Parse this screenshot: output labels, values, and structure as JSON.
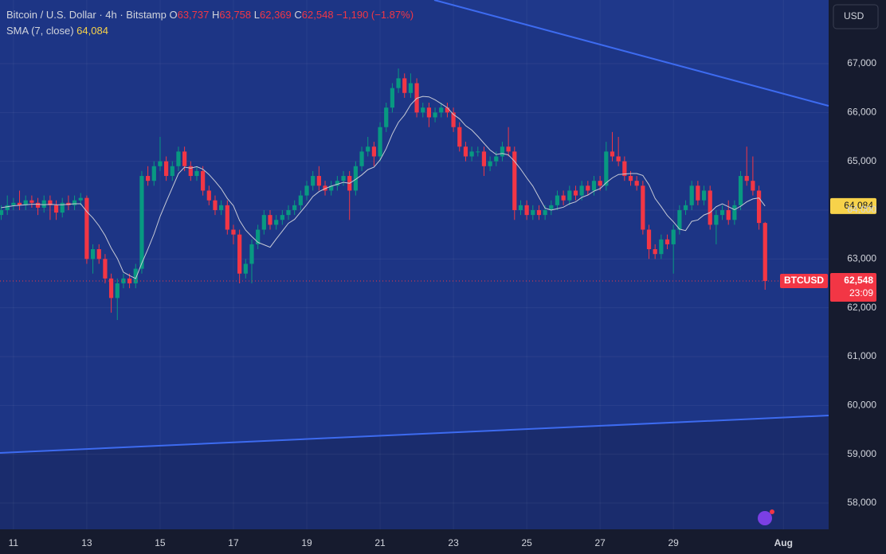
{
  "header": {
    "symbol": "Bitcoin / U.S. Dollar · 4h · Bitstamp",
    "ohlc": [
      [
        "O",
        "63,737"
      ],
      [
        "H",
        "63,758"
      ],
      [
        "L",
        "62,369"
      ],
      [
        "C",
        "62,548"
      ]
    ],
    "change": "−1,190 (−1.87%)",
    "indicator": "SMA (7, close)",
    "indicator_value": "64,084"
  },
  "chart_data": {
    "type": "candlestick",
    "up_color": "#089981",
    "down_color": "#f23645",
    "sma_color": "#c7cad6",
    "grid": true,
    "currency": "USD",
    "sma_tag": "64,084",
    "symbol_tag": "BTCUSD",
    "last_price_tag": "62,548",
    "countdown": "23:09",
    "xlim": [
      -0.2,
      135.4
    ],
    "xticks": [
      {
        "value": 2,
        "label": "11"
      },
      {
        "value": 14,
        "label": "13"
      },
      {
        "value": 26,
        "label": "15"
      },
      {
        "value": 38,
        "label": "17"
      },
      {
        "value": 50,
        "label": "19"
      },
      {
        "value": 62,
        "label": "21"
      },
      {
        "value": 74,
        "label": "23"
      },
      {
        "value": 86,
        "label": "25"
      },
      {
        "value": 98,
        "label": "27"
      },
      {
        "value": 110,
        "label": "29"
      },
      {
        "value": 128,
        "label": "Aug"
      }
    ],
    "ylim": [
      57462,
      68304
    ],
    "yticks": [
      {
        "value": 67000,
        "label": "67,000"
      },
      {
        "value": 66000,
        "label": "66,000"
      },
      {
        "value": 65000,
        "label": "65,000"
      },
      {
        "value": 64000,
        "label": "64,000"
      },
      {
        "value": 63000,
        "label": "63,000"
      },
      {
        "value": 62000,
        "label": "62,000"
      },
      {
        "value": 61000,
        "label": "61,000"
      },
      {
        "value": 60000,
        "label": "60,000"
      },
      {
        "value": 59000,
        "label": "59,000"
      },
      {
        "value": 58000,
        "label": "58,000"
      }
    ],
    "ohlc": [
      [
        63900,
        64100,
        63800,
        64000
      ],
      [
        64000,
        64300,
        63900,
        64100
      ],
      [
        64100,
        64250,
        64000,
        64150
      ],
      [
        64150,
        64400,
        64000,
        64100
      ],
      [
        64100,
        64300,
        64000,
        64200
      ],
      [
        64200,
        64300,
        64050,
        64150
      ],
      [
        64150,
        64250,
        63900,
        64050
      ],
      [
        64050,
        64300,
        63950,
        64200
      ],
      [
        64200,
        64300,
        63800,
        64100
      ],
      [
        64100,
        64200,
        63800,
        63950
      ],
      [
        63950,
        64250,
        63850,
        64150
      ],
      [
        64150,
        64300,
        64000,
        64100
      ],
      [
        64100,
        64300,
        64000,
        64200
      ],
      [
        64200,
        64350,
        64100,
        64250
      ],
      [
        64250,
        64300,
        62900,
        63000
      ],
      [
        63000,
        63300,
        62700,
        63200
      ],
      [
        63200,
        63300,
        62900,
        63000
      ],
      [
        63000,
        63100,
        62500,
        62600
      ],
      [
        62600,
        62700,
        61900,
        62200
      ],
      [
        62200,
        62600,
        61750,
        62500
      ],
      [
        62500,
        62700,
        62400,
        62600
      ],
      [
        62600,
        62700,
        62400,
        62500
      ],
      [
        62500,
        62900,
        62400,
        62800
      ],
      [
        62800,
        64800,
        62700,
        64700
      ],
      [
        64700,
        64900,
        64500,
        64600
      ],
      [
        64600,
        65000,
        64500,
        64900
      ],
      [
        64900,
        65500,
        64800,
        65000
      ],
      [
        65000,
        65100,
        64600,
        64700
      ],
      [
        64700,
        65000,
        64600,
        64900
      ],
      [
        64900,
        65300,
        64800,
        65200
      ],
      [
        65200,
        65300,
        64800,
        64900
      ],
      [
        64900,
        65000,
        64600,
        64700
      ],
      [
        64700,
        64900,
        64600,
        64800
      ],
      [
        64800,
        64900,
        64300,
        64400
      ],
      [
        64400,
        64500,
        64100,
        64200
      ],
      [
        64200,
        64300,
        63900,
        64000
      ],
      [
        64000,
        64200,
        63900,
        64100
      ],
      [
        64100,
        64200,
        63500,
        63600
      ],
      [
        63600,
        63700,
        63300,
        63500
      ],
      [
        63500,
        63600,
        62500,
        62700
      ],
      [
        62700,
        63000,
        62600,
        62900
      ],
      [
        62900,
        63400,
        62500,
        63300
      ],
      [
        63300,
        63700,
        63200,
        63600
      ],
      [
        63600,
        64000,
        63500,
        63900
      ],
      [
        63900,
        64000,
        63600,
        63700
      ],
      [
        63700,
        63900,
        63600,
        63800
      ],
      [
        63800,
        64000,
        63700,
        63900
      ],
      [
        63900,
        64100,
        63800,
        64000
      ],
      [
        64000,
        64200,
        63900,
        64100
      ],
      [
        64100,
        64400,
        64000,
        64300
      ],
      [
        64300,
        64600,
        64200,
        64500
      ],
      [
        64500,
        64800,
        64400,
        64700
      ],
      [
        64700,
        64900,
        64400,
        64500
      ],
      [
        64500,
        64600,
        64300,
        64400
      ],
      [
        64400,
        64600,
        64300,
        64500
      ],
      [
        64500,
        64700,
        64400,
        64600
      ],
      [
        64600,
        64800,
        64500,
        64700
      ],
      [
        64700,
        64800,
        63800,
        64400
      ],
      [
        64400,
        65000,
        64300,
        64900
      ],
      [
        64900,
        65300,
        64800,
        65200
      ],
      [
        65200,
        65500,
        65100,
        65300
      ],
      [
        65300,
        65400,
        64900,
        65100
      ],
      [
        65100,
        65800,
        65000,
        65700
      ],
      [
        65700,
        66200,
        65600,
        66100
      ],
      [
        66100,
        66600,
        66000,
        66500
      ],
      [
        66500,
        66900,
        66400,
        66700
      ],
      [
        66700,
        66800,
        66300,
        66400
      ],
      [
        66400,
        66800,
        66300,
        66600
      ],
      [
        66600,
        66700,
        65900,
        66000
      ],
      [
        66000,
        66200,
        65900,
        66100
      ],
      [
        66100,
        66200,
        65700,
        65900
      ],
      [
        65900,
        66100,
        65800,
        66000
      ],
      [
        66000,
        66200,
        65900,
        66100
      ],
      [
        66100,
        66200,
        65900,
        66000
      ],
      [
        66000,
        66100,
        65600,
        65700
      ],
      [
        65700,
        65800,
        65200,
        65300
      ],
      [
        65300,
        65400,
        65000,
        65100
      ],
      [
        65100,
        65300,
        65000,
        65200
      ],
      [
        65200,
        65300,
        65100,
        65200
      ],
      [
        65200,
        65300,
        64700,
        64900
      ],
      [
        64900,
        65100,
        64800,
        65000
      ],
      [
        65000,
        65200,
        64900,
        65100
      ],
      [
        65100,
        65400,
        65000,
        65300
      ],
      [
        65300,
        65700,
        65100,
        65200
      ],
      [
        65200,
        65300,
        63800,
        64000
      ],
      [
        64000,
        64200,
        63900,
        64100
      ],
      [
        64100,
        64200,
        63800,
        63900
      ],
      [
        63900,
        64100,
        63800,
        64000
      ],
      [
        64000,
        64100,
        63800,
        63900
      ],
      [
        63900,
        64100,
        63800,
        64000
      ],
      [
        64000,
        64200,
        63900,
        64100
      ],
      [
        64100,
        64400,
        64000,
        64300
      ],
      [
        64300,
        64400,
        64100,
        64200
      ],
      [
        64200,
        64500,
        64100,
        64400
      ],
      [
        64400,
        64500,
        64200,
        64300
      ],
      [
        64300,
        64600,
        64200,
        64500
      ],
      [
        64500,
        64600,
        64300,
        64400
      ],
      [
        64400,
        64700,
        64300,
        64600
      ],
      [
        64600,
        64700,
        64400,
        64500
      ],
      [
        64500,
        65400,
        64400,
        65200
      ],
      [
        65200,
        65600,
        65000,
        65100
      ],
      [
        65100,
        65500,
        64900,
        65000
      ],
      [
        65000,
        65100,
        64600,
        64700
      ],
      [
        64700,
        64800,
        64500,
        64600
      ],
      [
        64600,
        64700,
        64400,
        64500
      ],
      [
        64500,
        64600,
        63500,
        63600
      ],
      [
        63600,
        63700,
        63000,
        63200
      ],
      [
        63200,
        63300,
        63000,
        63100
      ],
      [
        63100,
        63500,
        63000,
        63400
      ],
      [
        63400,
        63500,
        63200,
        63300
      ],
      [
        63300,
        63700,
        62700,
        63600
      ],
      [
        63600,
        64100,
        63500,
        64000
      ],
      [
        64000,
        64200,
        63900,
        64100
      ],
      [
        64100,
        64600,
        64000,
        64500
      ],
      [
        64500,
        64600,
        64100,
        64200
      ],
      [
        64200,
        64500,
        64100,
        64400
      ],
      [
        64400,
        64500,
        63600,
        63700
      ],
      [
        63700,
        64000,
        63300,
        63900
      ],
      [
        63900,
        64100,
        63800,
        64000
      ],
      [
        64000,
        64200,
        63700,
        63800
      ],
      [
        63800,
        64200,
        63700,
        64100
      ],
      [
        64100,
        64800,
        64000,
        64700
      ],
      [
        64700,
        65300,
        64500,
        64600
      ],
      [
        64600,
        65100,
        64300,
        64400
      ],
      [
        64400,
        64500,
        63600,
        63737
      ],
      [
        63737,
        63758,
        62369,
        62548
      ]
    ],
    "sma": [
      64050,
      64070,
      64090,
      64100,
      64110,
      64120,
      64120,
      64110,
      64120,
      64110,
      64110,
      64120,
      64130,
      64130,
      63970,
      63840,
      63680,
      63480,
      63220,
      63010,
      62730,
      62660,
      62600,
      62910,
      63200,
      63510,
      63870,
      64170,
      64460,
      64750,
      64880,
      64860,
      64890,
      64840,
      64730,
      64590,
      64440,
      64240,
      64090,
      63790,
      63590,
      63460,
      63340,
      63290,
      63240,
      63410,
      63570,
      63730,
      63810,
      63960,
      64110,
      64280,
      64380,
      64440,
      64490,
      64530,
      64570,
      64550,
      64630,
      64720,
      64830,
      64880,
      65030,
      65260,
      65560,
      65800,
      65950,
      66160,
      66290,
      66330,
      66320,
      66260,
      66180,
      66100,
      65960,
      65870,
      65730,
      65640,
      65510,
      65370,
      65230,
      65140,
      65160,
      65130,
      65000,
      64840,
      64660,
      64490,
      64260,
      64040,
      64000,
      64030,
      64060,
      64130,
      64170,
      64260,
      64310,
      64390,
      64440,
      64560,
      64660,
      64730,
      64740,
      64750,
      64750,
      64710,
      64520,
      64240,
      64070,
      63890,
      63760,
      63610,
      63580,
      63770,
      63800,
      63900,
      63950,
      64070,
      64130,
      64070,
      64010,
      64080,
      64170,
      64230,
      64250,
      64084
    ]
  }
}
